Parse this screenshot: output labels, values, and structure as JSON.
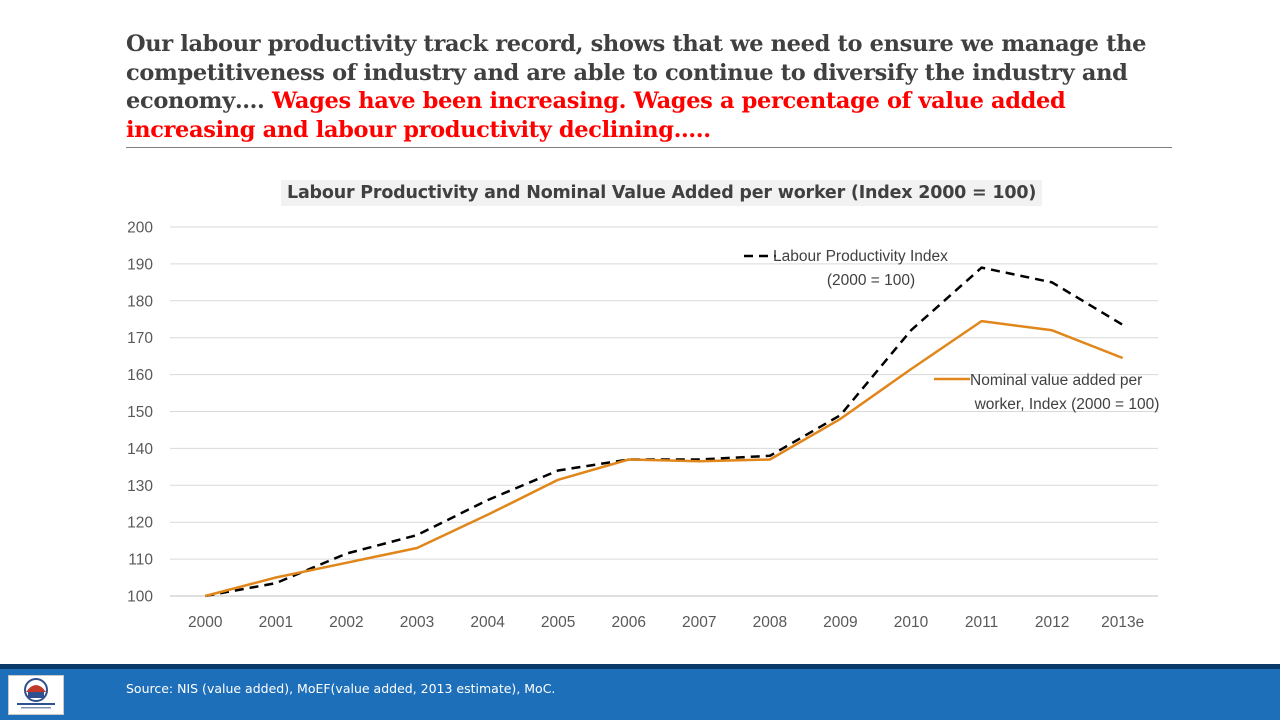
{
  "headline": {
    "part1": "Our labour productivity track record, shows that we need to ensure we manage the competitiveness of industry and are able to continue to diversify the industry and economy…. ",
    "part2": "Wages have been increasing. Wages a percentage of value added increasing and labour productivity declining….."
  },
  "footer": {
    "source": "Source: NIS (value added), MoEF(value added, 2013 estimate), MoC."
  },
  "colors": {
    "accent_red": "#ff0000",
    "series_orange": "#e0861a",
    "footer_blue": "#1e6fba"
  },
  "chart_data": {
    "type": "line",
    "title": "Labour Productivity and Nominal Value Added per worker (Index 2000 = 100)",
    "xlabel": "",
    "ylabel": "",
    "ylim": [
      100,
      200
    ],
    "yticks": [
      100,
      110,
      120,
      130,
      140,
      150,
      160,
      170,
      180,
      190,
      200
    ],
    "grid": true,
    "categories": [
      "2000",
      "2001",
      "2002",
      "2003",
      "2004",
      "2005",
      "2006",
      "2007",
      "2008",
      "2009",
      "2010",
      "2011",
      "2012",
      "2013e"
    ],
    "series": [
      {
        "name": "Labour Productivity Index",
        "name_line2": "(2000 = 100)",
        "style": "dashed",
        "color": "#000000",
        "values": [
          100,
          103.5,
          111.5,
          116.5,
          126,
          134,
          137,
          137,
          138,
          149,
          172,
          189,
          185,
          173.5
        ]
      },
      {
        "name": "Nominal value added per",
        "name_line2": "worker, Index (2000 = 100)",
        "style": "solid",
        "color": "#e0861a",
        "values": [
          100,
          105,
          109,
          113,
          122,
          131.5,
          137,
          136.5,
          137,
          148,
          161.5,
          174.5,
          172,
          164.5
        ]
      }
    ]
  }
}
